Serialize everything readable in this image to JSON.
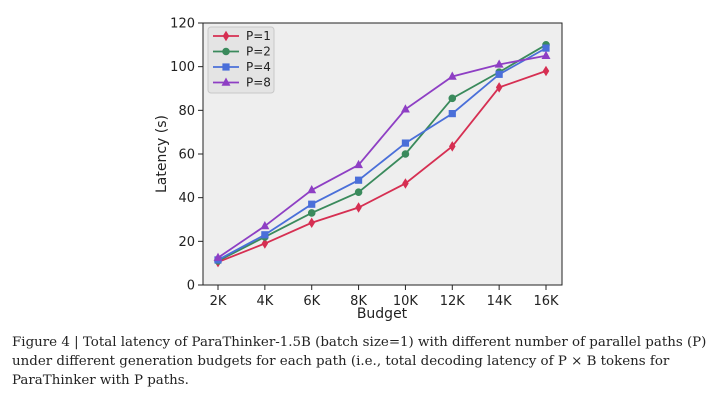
{
  "chart_data": {
    "type": "line",
    "title": "",
    "xlabel": "Budget",
    "ylabel": "Latency (s)",
    "categories": [
      "2K",
      "4K",
      "6K",
      "8K",
      "10K",
      "12K",
      "14K",
      "16K"
    ],
    "ylim": [
      0,
      120
    ],
    "yticks": [
      0,
      20,
      40,
      60,
      80,
      100,
      120
    ],
    "grid": false,
    "legend_position": "top-left",
    "series": [
      {
        "name": "P=1",
        "color": "#d62f52",
        "marker": "diamond",
        "values": [
          10.5,
          19,
          28.5,
          35.5,
          46.5,
          63.5,
          90.5,
          98
        ]
      },
      {
        "name": "P=2",
        "color": "#3a8a5c",
        "marker": "circle",
        "values": [
          11,
          22,
          33,
          42.5,
          60,
          85.5,
          97.5,
          110
        ]
      },
      {
        "name": "P=4",
        "color": "#4a6fd9",
        "marker": "square",
        "values": [
          11.5,
          23,
          37,
          48,
          65,
          78.5,
          96.5,
          108.5
        ]
      },
      {
        "name": "P=8",
        "color": "#8e3fc4",
        "marker": "triangle",
        "values": [
          12.5,
          27,
          43.5,
          55,
          80.5,
          95.5,
          101,
          105
        ]
      }
    ]
  },
  "caption": {
    "line1": "Figure 4 | Total latency of ParaThinker-1.5B (batch size=1) with different number of parallel paths (P)",
    "line2": "under different generation budgets for each path (i.e., total decoding latency of P × B tokens for",
    "line3": "ParaThinker with P paths."
  }
}
